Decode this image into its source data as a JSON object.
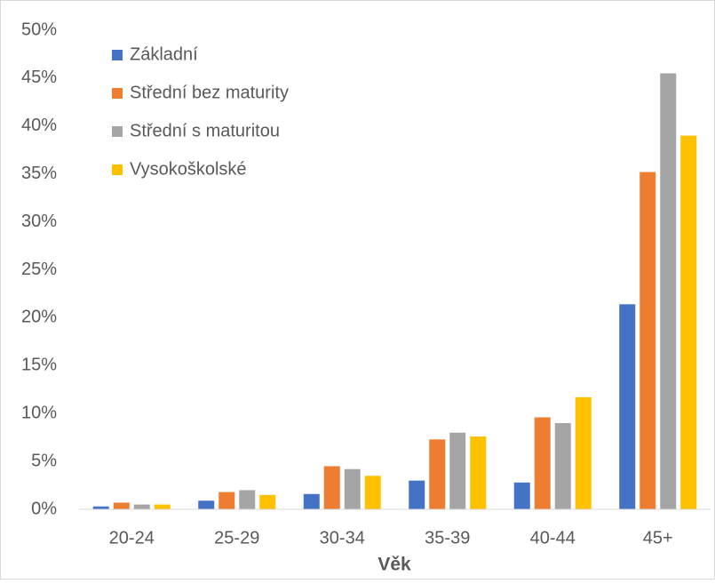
{
  "chart_data": {
    "type": "bar",
    "x_label": "Věk",
    "categories": [
      "20-24",
      "25-29",
      "30-34",
      "35-39",
      "40-44",
      "45+"
    ],
    "series": [
      {
        "name": "Základní",
        "color": "#4472c4",
        "values": [
          0.3,
          0.9,
          1.6,
          3.0,
          2.8,
          21.4
        ]
      },
      {
        "name": "Střední bez maturity",
        "color": "#ed7d31",
        "values": [
          0.7,
          1.8,
          4.5,
          7.3,
          9.6,
          35.2
        ]
      },
      {
        "name": "Střední s maturitou",
        "color": "#a5a5a5",
        "values": [
          0.5,
          2.0,
          4.2,
          8.0,
          9.0,
          45.5
        ]
      },
      {
        "name": "Vysokoškolské",
        "color": "#ffc000",
        "values": [
          0.5,
          1.5,
          3.5,
          7.6,
          11.7,
          39.0
        ]
      }
    ],
    "ylim": [
      0,
      50
    ],
    "yticks": [
      {
        "value": 0,
        "label": "0%"
      },
      {
        "value": 5,
        "label": "5%"
      },
      {
        "value": 10,
        "label": "10%"
      },
      {
        "value": 15,
        "label": "15%"
      },
      {
        "value": 20,
        "label": "20%"
      },
      {
        "value": 25,
        "label": "25%"
      },
      {
        "value": 30,
        "label": "30%"
      },
      {
        "value": 35,
        "label": "35%"
      },
      {
        "value": 40,
        "label": "40%"
      },
      {
        "value": 45,
        "label": "45%"
      },
      {
        "value": 50,
        "label": "50%"
      }
    ],
    "grid": false,
    "legend": "upper left"
  }
}
